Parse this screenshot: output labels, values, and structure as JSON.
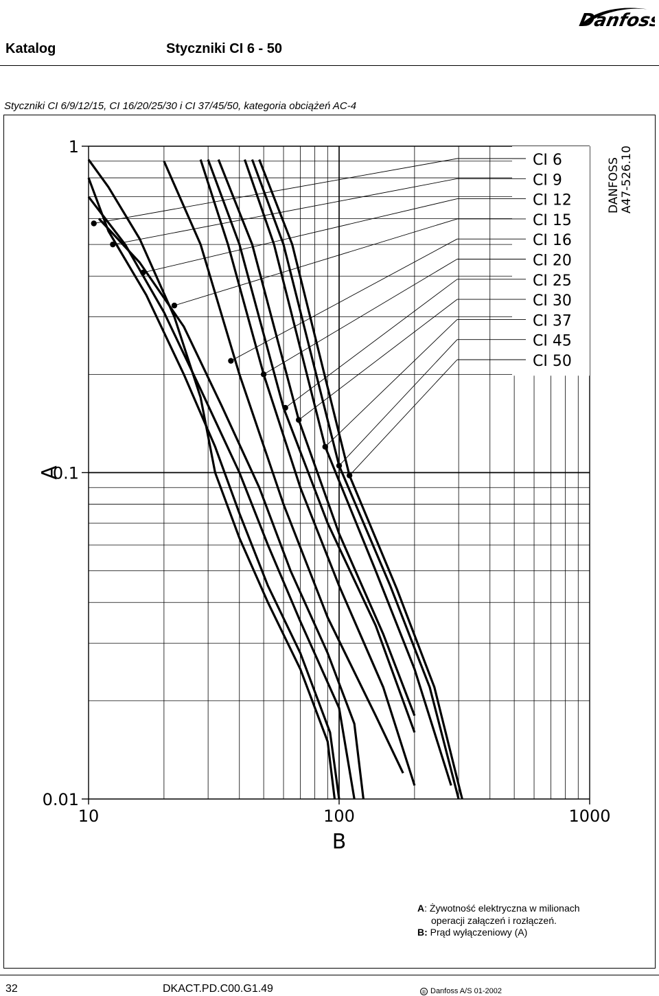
{
  "header": {
    "section": "Katalog",
    "title": "Styczniki CI 6 - 50",
    "brand": "Danfoss"
  },
  "caption": "Styczniki CI 6/9/12/15, CI 16/20/25/30 i CI 37/45/50, kategoria obciążeń AC-4",
  "drawing_code": [
    "DANFOSS",
    "A47-526.10"
  ],
  "notes": {
    "a_label": "A",
    "a_text_1": ": Żywotność elektryczna w milionach",
    "a_text_2": "operacji załączeń i rozłączeń.",
    "b_label": "B:",
    "b_text": "Prąd wyłączeniowy (A)"
  },
  "footer": {
    "page": "32",
    "code": "DKACT.PD.C00.G1.49",
    "copyright": "Danfoss A/S 01-2002",
    "copyright_symbol": "®"
  },
  "chart_data": {
    "type": "line",
    "xlabel": "B",
    "ylabel": "A",
    "xscale": "log",
    "yscale": "log",
    "xlim": [
      10,
      1000
    ],
    "ylim": [
      0.01,
      1
    ],
    "xticks": [
      {
        "value": 10,
        "label": "10"
      },
      {
        "value": 100,
        "label": "100"
      },
      {
        "value": 1000,
        "label": "1000"
      }
    ],
    "yticks": [
      {
        "value": 1,
        "label": "1"
      },
      {
        "value": 0.1,
        "label": "0.1"
      },
      {
        "value": 0.01,
        "label": "0.01"
      }
    ],
    "grid": true,
    "legend_position": "top-right",
    "series": [
      {
        "name": "CI 6",
        "marker": {
          "x": 10.5,
          "y": 0.58
        },
        "points": [
          [
            10,
            0.91
          ],
          [
            12,
            0.75
          ],
          [
            16,
            0.52
          ],
          [
            22,
            0.3
          ],
          [
            28,
            0.17
          ],
          [
            32,
            0.1
          ],
          [
            40,
            0.063
          ],
          [
            52,
            0.04
          ],
          [
            70,
            0.025
          ],
          [
            90,
            0.015
          ],
          [
            96,
            0.01
          ]
        ]
      },
      {
        "name": "CI 9",
        "marker": {
          "x": 12.5,
          "y": 0.5
        },
        "points": [
          [
            10,
            0.8
          ],
          [
            12,
            0.55
          ],
          [
            17,
            0.35
          ],
          [
            24,
            0.2
          ],
          [
            32,
            0.12
          ],
          [
            40,
            0.075
          ],
          [
            52,
            0.045
          ],
          [
            70,
            0.028
          ],
          [
            92,
            0.016
          ],
          [
            100,
            0.01
          ]
        ]
      },
      {
        "name": "CI 12",
        "marker": {
          "x": 16.5,
          "y": 0.41
        },
        "points": [
          [
            10,
            0.7
          ],
          [
            14,
            0.5
          ],
          [
            20,
            0.31
          ],
          [
            28,
            0.18
          ],
          [
            40,
            0.1
          ],
          [
            52,
            0.06
          ],
          [
            70,
            0.035
          ],
          [
            100,
            0.019
          ],
          [
            115,
            0.01
          ]
        ]
      },
      {
        "name": "CI 15",
        "marker": {
          "x": 22,
          "y": 0.325
        },
        "points": [
          [
            11,
            0.6
          ],
          [
            16,
            0.44
          ],
          [
            24,
            0.28
          ],
          [
            34,
            0.16
          ],
          [
            48,
            0.09
          ],
          [
            64,
            0.05
          ],
          [
            90,
            0.028
          ],
          [
            115,
            0.017
          ],
          [
            125,
            0.01
          ]
        ]
      },
      {
        "name": "CI 16",
        "marker": {
          "x": 37,
          "y": 0.22
        },
        "points": [
          [
            20,
            0.9
          ],
          [
            28,
            0.5
          ],
          [
            40,
            0.2
          ],
          [
            60,
            0.08
          ],
          [
            90,
            0.036
          ],
          [
            140,
            0.018
          ],
          [
            180,
            0.012
          ]
        ]
      },
      {
        "name": "CI 20",
        "marker": {
          "x": 50,
          "y": 0.2
        },
        "points": [
          [
            28,
            0.91
          ],
          [
            36,
            0.5
          ],
          [
            50,
            0.2
          ],
          [
            70,
            0.09
          ],
          [
            100,
            0.045
          ],
          [
            150,
            0.022
          ],
          [
            200,
            0.011
          ]
        ]
      },
      {
        "name": "CI 25",
        "marker": {
          "x": 61,
          "y": 0.158
        },
        "points": [
          [
            30,
            0.91
          ],
          [
            40,
            0.5
          ],
          [
            60,
            0.158
          ],
          [
            90,
            0.07
          ],
          [
            140,
            0.034
          ],
          [
            200,
            0.016
          ]
        ]
      },
      {
        "name": "CI 30",
        "marker": {
          "x": 69,
          "y": 0.145
        },
        "points": [
          [
            33,
            0.91
          ],
          [
            45,
            0.5
          ],
          [
            69,
            0.145
          ],
          [
            100,
            0.065
          ],
          [
            150,
            0.032
          ],
          [
            200,
            0.018
          ]
        ]
      },
      {
        "name": "CI 37",
        "marker": {
          "x": 88,
          "y": 0.12
        },
        "points": [
          [
            42,
            0.91
          ],
          [
            55,
            0.5
          ],
          [
            88,
            0.12
          ],
          [
            140,
            0.05
          ],
          [
            200,
            0.025
          ],
          [
            280,
            0.011
          ]
        ]
      },
      {
        "name": "CI 45",
        "marker": {
          "x": 100,
          "y": 0.105
        },
        "points": [
          [
            45,
            0.91
          ],
          [
            60,
            0.5
          ],
          [
            100,
            0.105
          ],
          [
            160,
            0.045
          ],
          [
            230,
            0.022
          ],
          [
            300,
            0.01
          ]
        ]
      },
      {
        "name": "CI 50",
        "marker": {
          "x": 110,
          "y": 0.098
        },
        "points": [
          [
            48,
            0.91
          ],
          [
            65,
            0.5
          ],
          [
            110,
            0.098
          ],
          [
            170,
            0.044
          ],
          [
            240,
            0.022
          ],
          [
            310,
            0.01
          ]
        ]
      }
    ]
  }
}
